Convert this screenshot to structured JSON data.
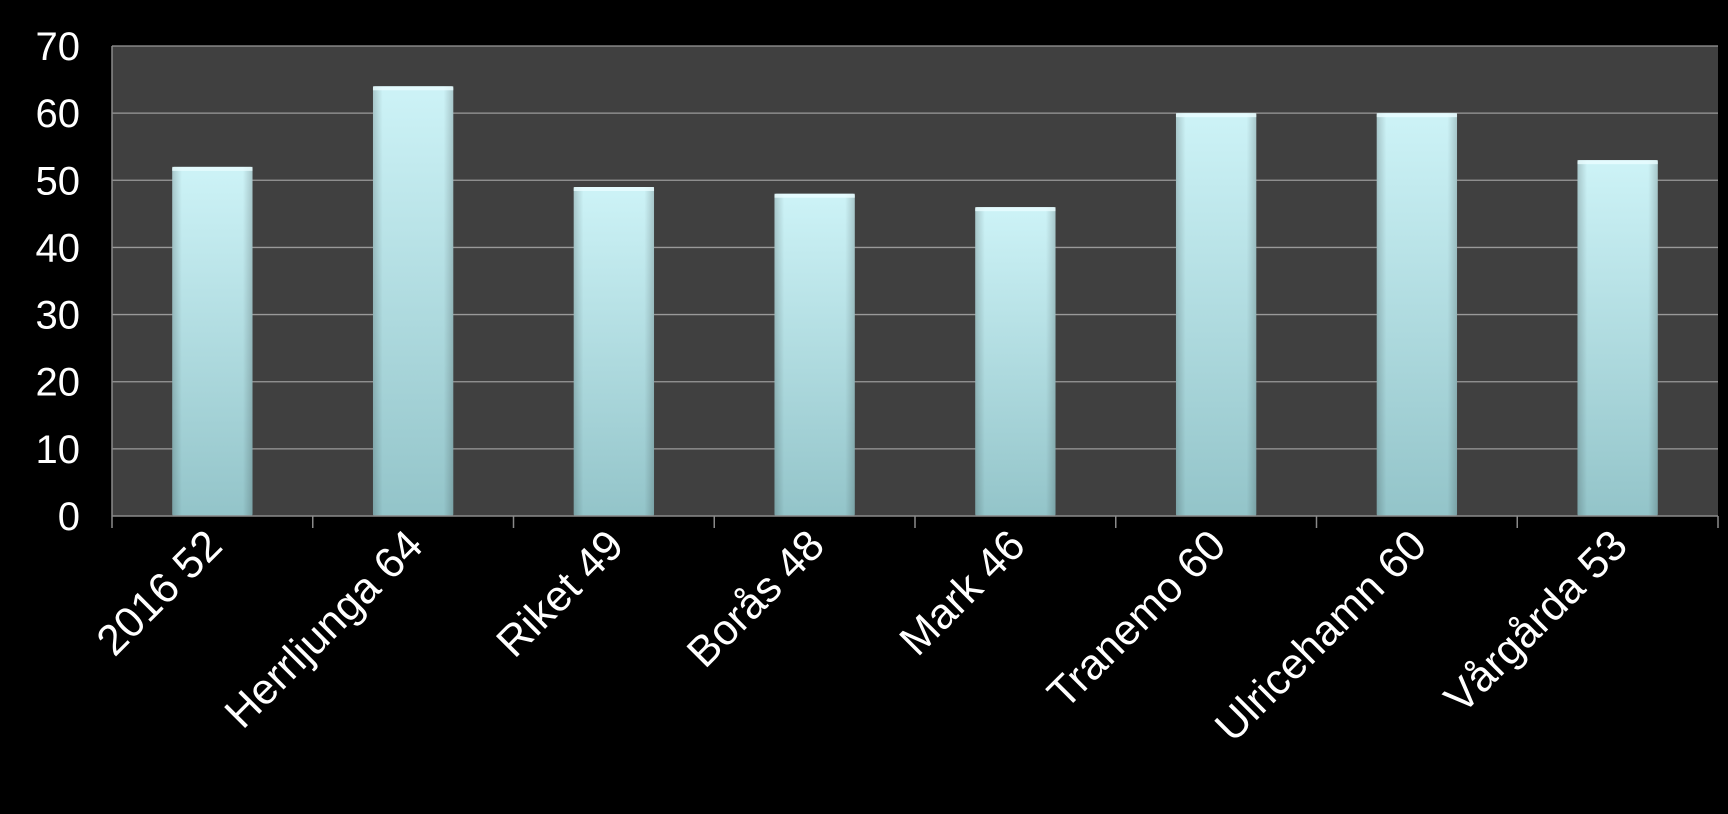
{
  "chart_data": {
    "type": "bar",
    "categories": [
      "2016 52",
      "Herrljunga 64",
      "Riket 49",
      "Borås 48",
      "Mark 46",
      "Tranemo 60",
      "Ulricehamn 60",
      "Vårgårda 53"
    ],
    "values": [
      52,
      64,
      49,
      48,
      46,
      60,
      60,
      53
    ],
    "yticks": [
      "0",
      "10",
      "20",
      "30",
      "40",
      "50",
      "60",
      "70"
    ],
    "ylim": [
      0,
      70
    ],
    "grid": true,
    "legend": "none",
    "colors": {
      "background": "#000000",
      "plot_area": "#404040",
      "gridline": "#9a9a9a",
      "bar_top": "#cdf3f7",
      "bar_bottom": "#93c4c9",
      "text": "#ffffff"
    }
  }
}
